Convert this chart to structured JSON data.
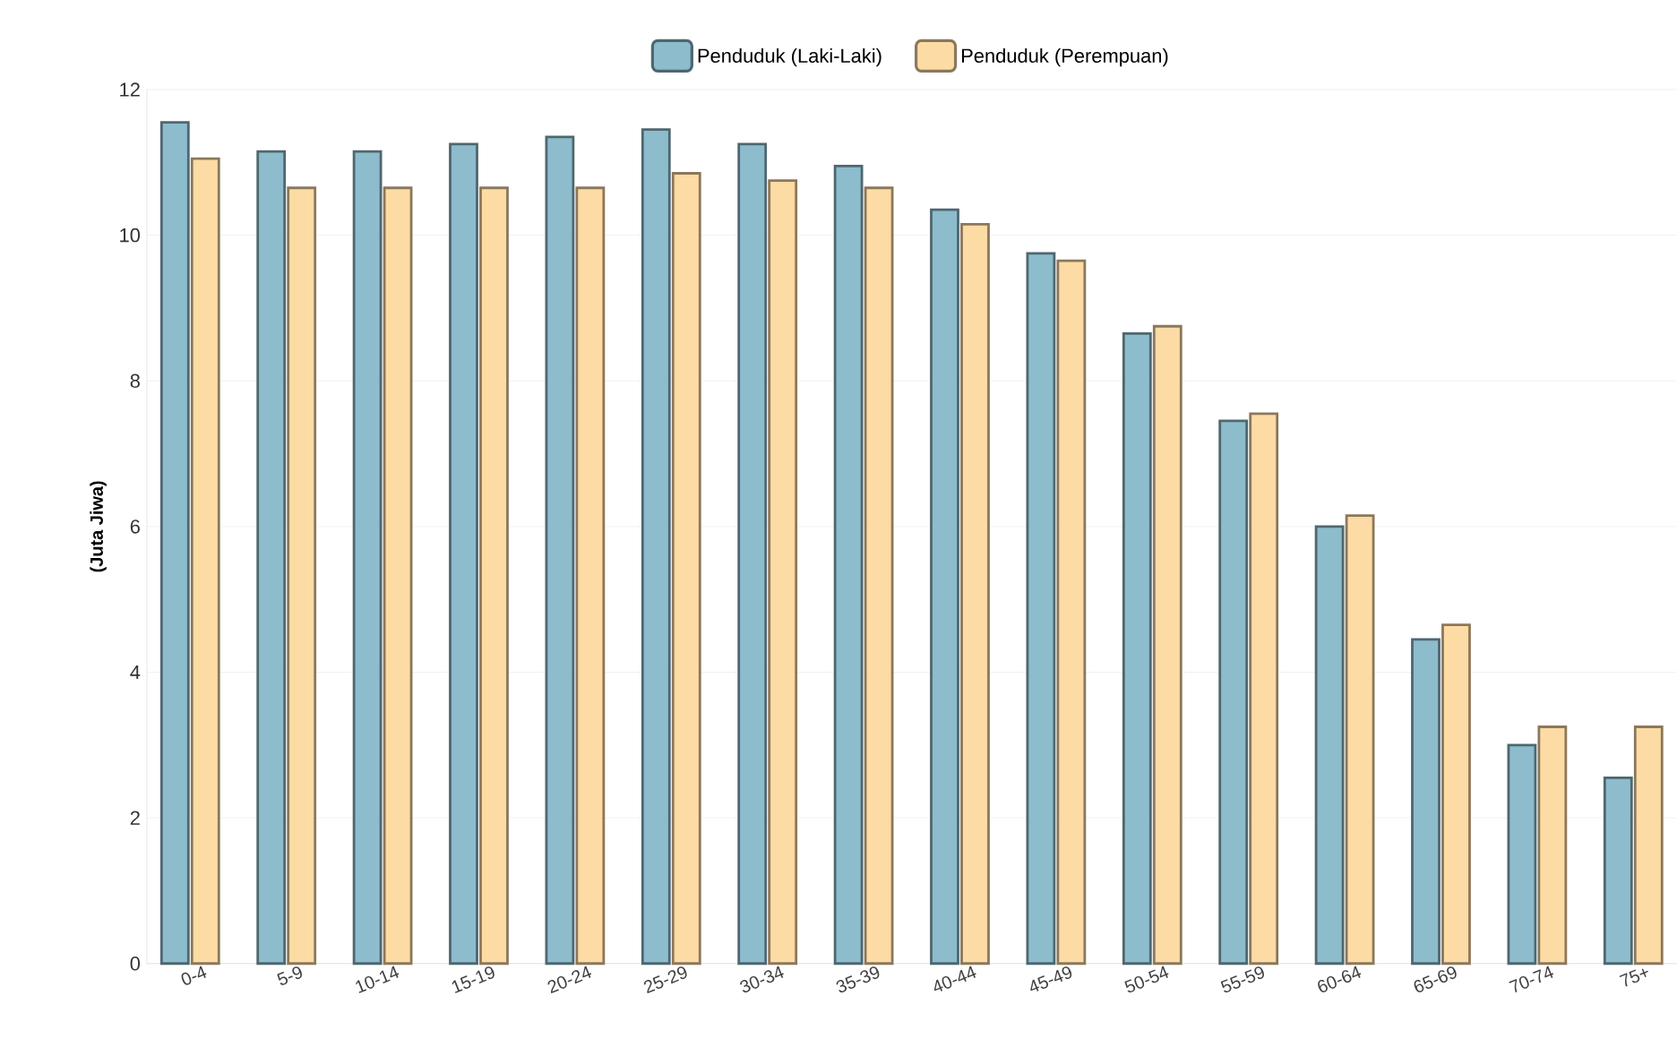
{
  "chart_data": {
    "type": "bar",
    "ylabel": "(Juta Jiwa)",
    "categories": [
      "0-4",
      "5-9",
      "10-14",
      "15-19",
      "20-24",
      "25-29",
      "30-34",
      "35-39",
      "40-44",
      "45-49",
      "50-54",
      "55-59",
      "60-64",
      "65-69",
      "70-74",
      "75+"
    ],
    "series": [
      {
        "name": "Penduduk (Laki-Laki)",
        "color": "#8dbccc",
        "values": [
          11.55,
          11.15,
          11.15,
          11.25,
          11.35,
          11.45,
          11.25,
          10.95,
          10.35,
          9.75,
          8.65,
          7.45,
          6.0,
          4.45,
          3.0,
          2.55
        ]
      },
      {
        "name": "Penduduk (Perempuan)",
        "color": "#fddba5",
        "values": [
          11.05,
          10.65,
          10.65,
          10.65,
          10.65,
          10.85,
          10.75,
          10.65,
          10.15,
          9.65,
          8.75,
          7.55,
          6.15,
          4.65,
          3.25,
          3.25
        ]
      }
    ],
    "ylim": [
      0,
      12
    ],
    "yticks": [
      0,
      2,
      4,
      6,
      8,
      10,
      12
    ],
    "grid": "y",
    "legend": "top"
  }
}
